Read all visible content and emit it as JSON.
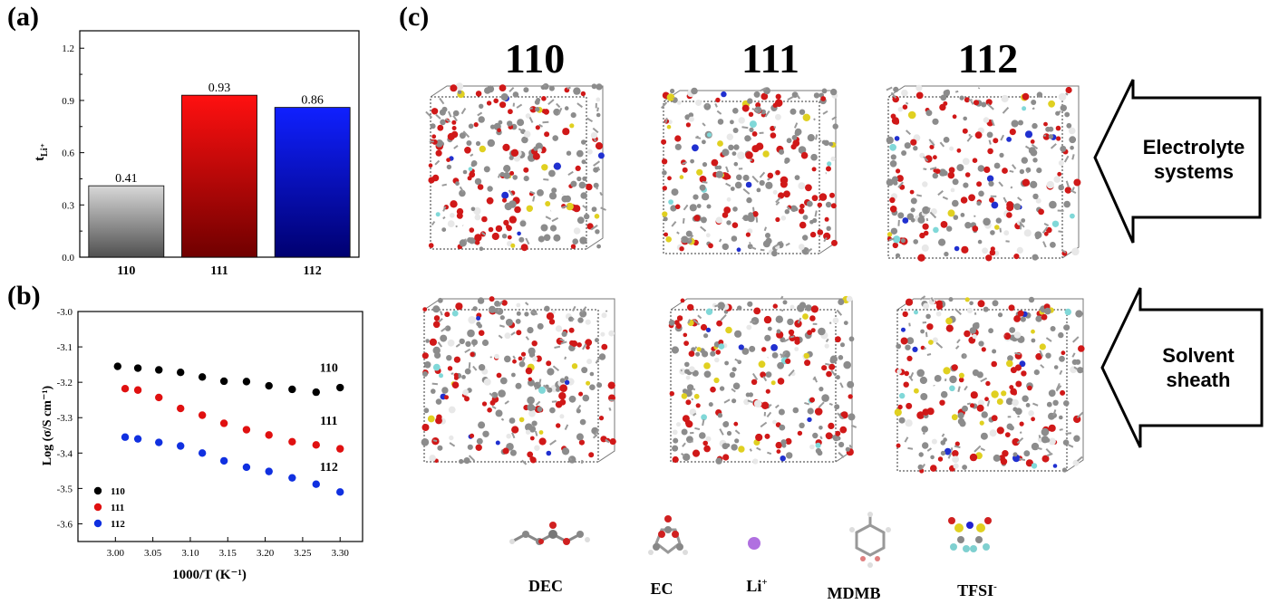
{
  "panels": {
    "a": "(a)",
    "b": "(b)",
    "c": "(c)"
  },
  "chart_data": [
    {
      "type": "bar",
      "categories": [
        "110",
        "111",
        "112"
      ],
      "values": [
        0.41,
        0.93,
        0.86
      ],
      "data_labels": [
        "0.41",
        "0.93",
        "0.86"
      ],
      "ylabel": "t",
      "ylabel_sub": "Li⁺",
      "ylim": [
        0,
        1.3
      ],
      "yticks": [
        "0.0",
        "0.3",
        "0.6",
        "0.9",
        "1.2"
      ],
      "colors": [
        "#8a8a8a",
        "#c40000",
        "#1010d0"
      ]
    },
    {
      "type": "scatter",
      "xlabel": "1000/T (K⁻¹)",
      "ylabel": "Log (σ/S cm⁻¹)",
      "xlim": [
        2.95,
        3.33
      ],
      "ylim": [
        -3.65,
        -3.0
      ],
      "xticks": [
        "3.00",
        "3.05",
        "3.10",
        "3.15",
        "3.20",
        "3.25",
        "3.30"
      ],
      "yticks": [
        "-3.0",
        "-3.1",
        "-3.2",
        "-3.3",
        "-3.4",
        "-3.5",
        "-3.6"
      ],
      "series": [
        {
          "name": "110",
          "color": "#000000",
          "x": [
            3.003,
            3.03,
            3.058,
            3.087,
            3.116,
            3.145,
            3.175,
            3.205,
            3.236,
            3.268,
            3.3
          ],
          "y": [
            -3.155,
            -3.16,
            -3.165,
            -3.172,
            -3.185,
            -3.197,
            -3.198,
            -3.21,
            -3.22,
            -3.228,
            -3.215
          ]
        },
        {
          "name": "111",
          "color": "#e01010",
          "x": [
            3.013,
            3.03,
            3.058,
            3.087,
            3.116,
            3.145,
            3.175,
            3.205,
            3.236,
            3.268,
            3.3
          ],
          "y": [
            -3.218,
            -3.222,
            -3.243,
            -3.274,
            -3.293,
            -3.316,
            -3.334,
            -3.349,
            -3.368,
            -3.377,
            -3.388
          ]
        },
        {
          "name": "112",
          "color": "#1030e0",
          "x": [
            3.013,
            3.03,
            3.058,
            3.087,
            3.116,
            3.145,
            3.175,
            3.205,
            3.236,
            3.268,
            3.3
          ],
          "y": [
            -3.355,
            -3.36,
            -3.37,
            -3.38,
            -3.4,
            -3.422,
            -3.44,
            -3.452,
            -3.47,
            -3.488,
            -3.51
          ]
        }
      ],
      "annotations": [
        {
          "text": "110",
          "x": 3.285,
          "y": -3.17
        },
        {
          "text": "111",
          "x": 3.285,
          "y": -3.32
        },
        {
          "text": "112",
          "x": 3.285,
          "y": -3.45
        }
      ],
      "legend": "bottom-left"
    }
  ],
  "structures": {
    "column_titles": [
      "110",
      "111",
      "112"
    ],
    "arrows": [
      {
        "line1": "Electrolyte",
        "line2": "systems"
      },
      {
        "line1": "Solvent",
        "line2": "sheath"
      }
    ],
    "molecules": [
      "DEC",
      "EC",
      "Li",
      "MDMB",
      "TFSI"
    ],
    "li_sup": "+",
    "tfsi_sup": "-"
  }
}
